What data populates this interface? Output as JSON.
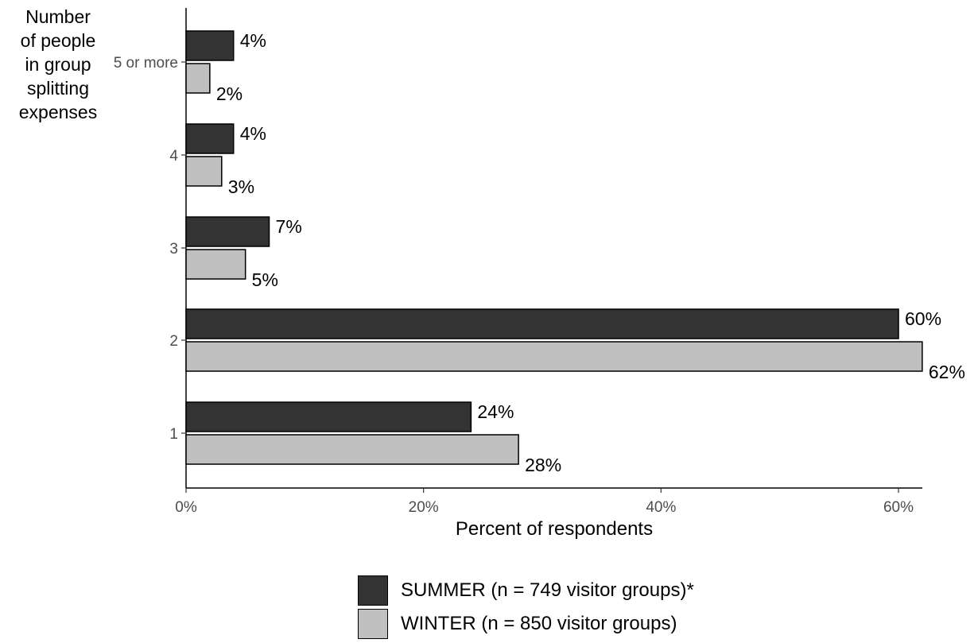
{
  "chart_data": {
    "type": "bar",
    "orientation": "horizontal",
    "categories": [
      "5 or more",
      "4",
      "3",
      "2",
      "1"
    ],
    "series": [
      {
        "name": "SUMMER (n = 749 visitor groups)*",
        "color": "#333333",
        "values": [
          4,
          4,
          7,
          60,
          24
        ],
        "labels": [
          "4%",
          "4%",
          "7%",
          "60%",
          "24%"
        ]
      },
      {
        "name": "WINTER (n = 850 visitor groups)",
        "color": "#c0c0c0",
        "values": [
          2,
          3,
          5,
          62,
          28
        ],
        "labels": [
          "2%",
          "3%",
          "5%",
          "62%",
          "28%"
        ]
      }
    ],
    "ylabel": "Number\nof people\nin group\nsplitting\nexpenses",
    "xlabel": "Percent of respondents",
    "xlim": [
      0,
      62
    ],
    "xticks": [
      0,
      20,
      40,
      60
    ],
    "xtick_labels": [
      "0%",
      "20%",
      "40%",
      "60%"
    ],
    "grid": false,
    "legend_position": "bottom"
  }
}
